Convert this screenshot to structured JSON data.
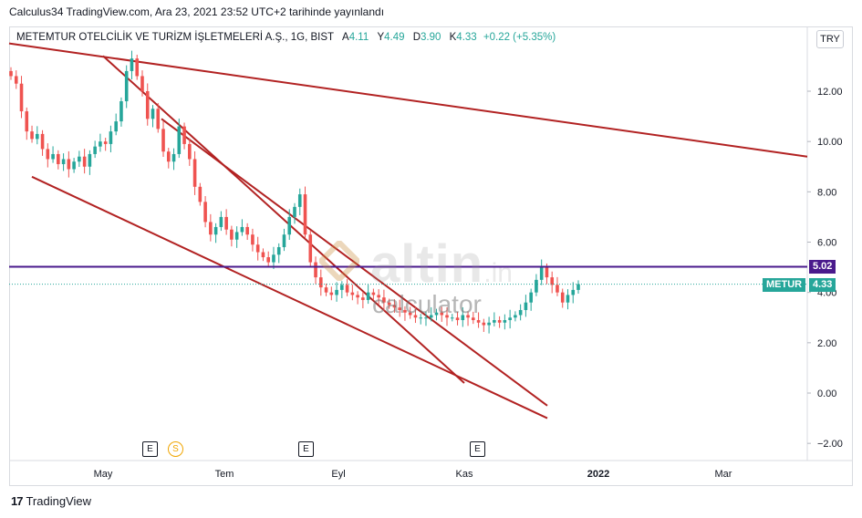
{
  "header": {
    "published": "Calculus34 TradingView.com, Ara 23, 2021 23:52 UTC+2 tarihinde yayınlandı"
  },
  "legend": {
    "symbol": "METEMTUR OTELCİLİK VE TURİZM İŞLETMELERİ A.Ş., 1G, BIST",
    "open_label": "A",
    "open": "4.11",
    "high_label": "Y",
    "high": "4.49",
    "low_label": "D",
    "low": "3.90",
    "close_label": "K",
    "close": "4.33",
    "change": "+0.22 (+5.35%)"
  },
  "currency": "TRY",
  "price_badges": {
    "line_value": "5.02",
    "line_color": "#4a1a8c",
    "ticker": "METUR",
    "last": "4.33",
    "last_color": "#26a69a"
  },
  "events": [
    {
      "type": "E",
      "label": "E"
    },
    {
      "type": "S",
      "label": "S"
    },
    {
      "type": "E",
      "label": "E"
    },
    {
      "type": "E",
      "label": "E"
    }
  ],
  "watermark": {
    "brand": "altin",
    "suffix": ".in",
    "sub": "calculator"
  },
  "footer": {
    "brand": "TradingView",
    "logo": "17"
  },
  "chart_data": {
    "type": "candlestick",
    "x_ticks": [
      "May",
      "Tem",
      "Eyl",
      "Kas",
      "2022",
      "Mar"
    ],
    "y_ticks": [
      12.0,
      10.0,
      8.0,
      6.0,
      4.0,
      2.0,
      0.0,
      -2.0
    ],
    "y_tick_labels": [
      "12.00",
      "10.00",
      "8.00",
      "6.00",
      "4.00",
      "2.00",
      "0.00",
      "−2.00"
    ],
    "ylim": [
      -2.7,
      14.4
    ],
    "horizontal_line": 5.02,
    "last_price": 4.33,
    "colors": {
      "up": "#26a69a",
      "down": "#ef5350",
      "trend": "#b22222",
      "hline": "#4a1a8c"
    },
    "closes": [
      12.6,
      12.3,
      11.2,
      10.4,
      10.1,
      10.3,
      9.7,
      9.3,
      9.5,
      9.1,
      9.3,
      8.9,
      9.2,
      9.4,
      9.0,
      9.5,
      9.8,
      10.0,
      9.9,
      10.4,
      10.8,
      11.6,
      12.8,
      13.3,
      12.6,
      12.0,
      10.9,
      11.3,
      10.5,
      9.6,
      9.2,
      9.5,
      10.6,
      9.9,
      9.3,
      8.2,
      7.6,
      6.8,
      6.3,
      6.6,
      7.0,
      6.5,
      6.1,
      6.4,
      6.6,
      6.3,
      5.9,
      5.6,
      5.4,
      5.2,
      5.5,
      5.8,
      6.3,
      7.0,
      7.4,
      7.9,
      6.3,
      5.2,
      4.6,
      4.2,
      4.0,
      3.9,
      4.1,
      4.3,
      4.0,
      3.9,
      3.8,
      3.7,
      4.0,
      3.9,
      3.8,
      3.6,
      3.5,
      3.4,
      3.3,
      3.2,
      3.1,
      3.0,
      3.0,
      3.0,
      3.1,
      3.2,
      3.1,
      3.0,
      3.0,
      2.9,
      3.1,
      3.0,
      2.9,
      2.8,
      2.7,
      2.8,
      2.9,
      2.8,
      2.9,
      3.0,
      3.1,
      3.3,
      3.6,
      4.0,
      4.5,
      5.0,
      4.6,
      4.3,
      4.0,
      3.6,
      3.9,
      4.1,
      4.33
    ],
    "trend_lines": [
      {
        "from": [
          "start",
          13.9
        ],
        "to": [
          "end",
          9.4
        ]
      },
      {
        "from": [
          "May",
          13.4
        ],
        "to": [
          "Kas",
          0.4
        ]
      },
      {
        "from": [
          "Haz",
          10.9
        ],
        "to": [
          "Ara",
          -0.5
        ]
      },
      {
        "from": [
          "Nis",
          8.6
        ],
        "to": [
          "Ara",
          -1.0
        ]
      }
    ]
  }
}
